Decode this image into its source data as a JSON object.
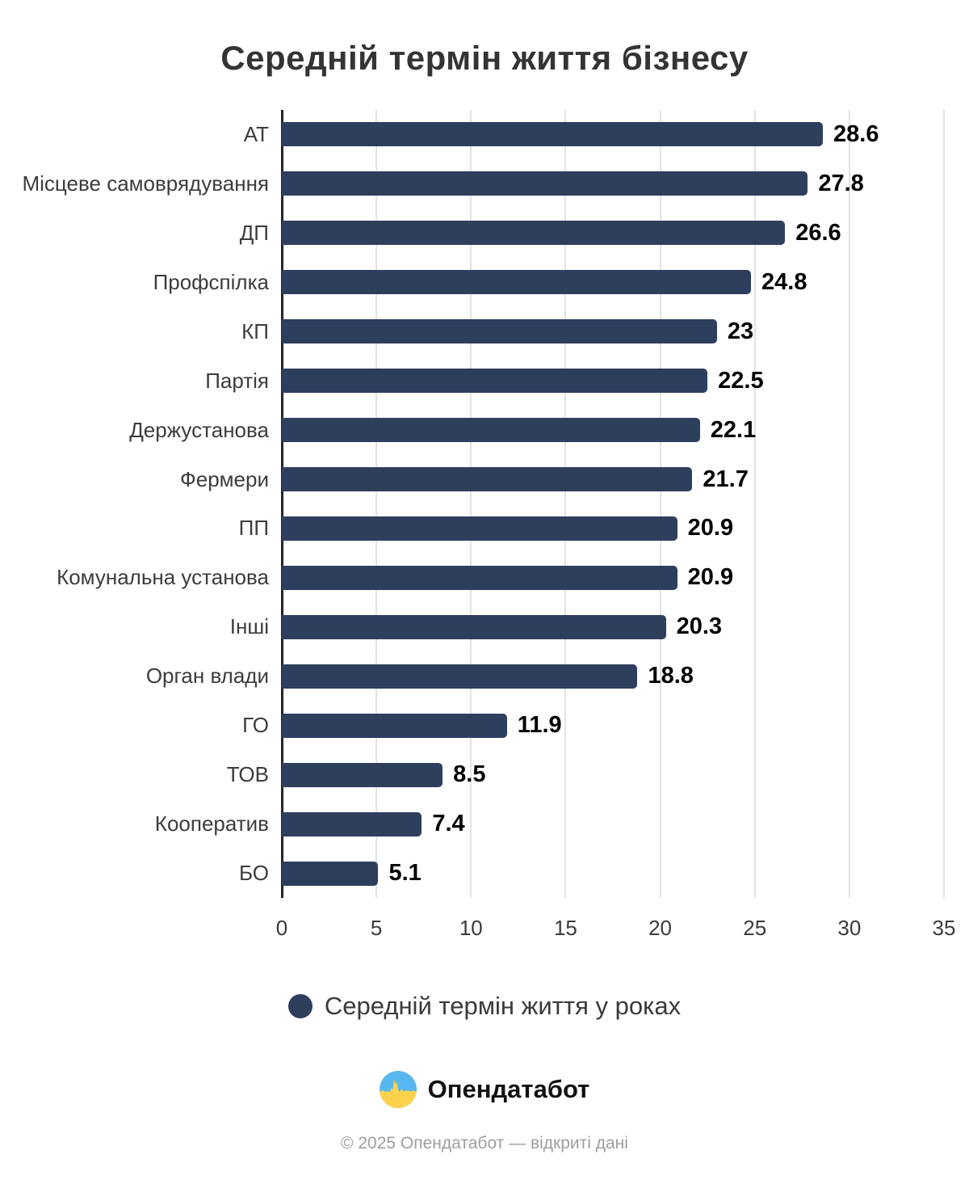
{
  "chart_data": {
    "type": "bar",
    "orientation": "horizontal",
    "title": "Середній термін життя бізнесу",
    "categories": [
      "АТ",
      "Місцеве самоврядування",
      "ДП",
      "Профспілка",
      "КП",
      "Партія",
      "Держустанова",
      "Фермери",
      "ПП",
      "Комунальна установа",
      "Інші",
      "Орган влади",
      "ГО",
      "ТОВ",
      "Кооператив",
      "БО"
    ],
    "values": [
      28.6,
      27.8,
      26.6,
      24.8,
      23,
      22.5,
      22.1,
      21.7,
      20.9,
      20.9,
      20.3,
      18.8,
      11.9,
      8.5,
      7.4,
      5.1
    ],
    "value_labels": [
      "28.6",
      "27.8",
      "26.6",
      "24.8",
      "23",
      "22.5",
      "22.1",
      "21.7",
      "20.9",
      "20.9",
      "20.3",
      "18.8",
      "11.9",
      "8.5",
      "7.4",
      "5.1"
    ],
    "xlabel": "",
    "ylabel": "",
    "xlim": [
      0,
      35
    ],
    "xticks": [
      0,
      5,
      10,
      15,
      20,
      25,
      30,
      35
    ],
    "grid": "vertical-gridlines",
    "legend": {
      "label": "Середній термін життя у роках",
      "position": "bottom"
    },
    "bar_color": "#2e3f5e"
  },
  "footer": {
    "brand": "Опендатабот",
    "copyright": "© 2025 Опендатабот — відкриті дані"
  },
  "colors": {
    "bar": "#2e3f5e",
    "axis_line": "#262626",
    "gridline": "#e3e3e3",
    "title_text": "#343434",
    "category_text": "#3c3c3c",
    "value_text": "#000000",
    "copyright_text": "#9e9e9e",
    "logo_blue": "#58b7f0",
    "logo_yellow": "#fcd24b"
  }
}
